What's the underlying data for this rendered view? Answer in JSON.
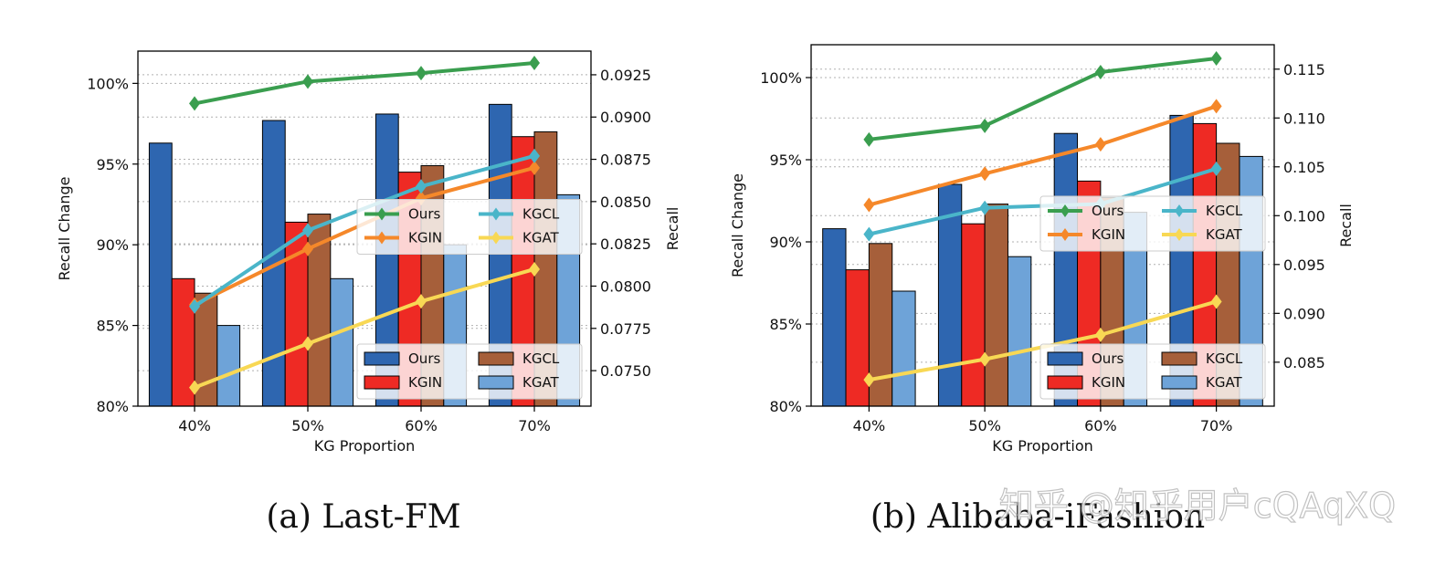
{
  "colors": {
    "Ours_bar": "#2e66b0",
    "KGIN_bar": "#ee2a24",
    "KGCL_bar": "#a65f3a",
    "KGAT_bar": "#6ea3d8",
    "Ours_line": "#3a9e4f",
    "KGIN_line": "#f5882a",
    "KGCL_line": "#4ab5c9",
    "KGAT_line": "#f8d854",
    "grid": "#b0b0b0"
  },
  "watermark": "知乎 @知乎用户cQAqXQ",
  "chart_data": [
    {
      "type": "bar",
      "caption": "(a)  Last-FM",
      "categories": [
        "40%",
        "50%",
        "60%",
        "70%"
      ],
      "xlabel": "KG Proportion",
      "ylabel": "Recall Change",
      "ylim": [
        80,
        102
      ],
      "y_ticks": [
        80,
        85,
        90,
        95,
        100
      ],
      "y_tick_labels": [
        "80%",
        "85%",
        "90%",
        "95%",
        "100%"
      ],
      "y2label": "Recall",
      "y2lim": [
        0.0729,
        0.0939
      ],
      "y2_ticks": [
        0.075,
        0.0775,
        0.08,
        0.0825,
        0.085,
        0.0875,
        0.09,
        0.0925
      ],
      "y2_tick_labels": [
        "0.0750",
        "0.0775",
        "0.0800",
        "0.0825",
        "0.0850",
        "0.0875",
        "0.0900",
        "0.0925"
      ],
      "grid": true,
      "bar_series": [
        {
          "name": "Ours",
          "values": [
            96.3,
            97.7,
            98.1,
            98.7
          ]
        },
        {
          "name": "KGIN",
          "values": [
            87.9,
            91.4,
            94.5,
            96.7
          ]
        },
        {
          "name": "KGCL",
          "values": [
            87.0,
            91.9,
            94.9,
            97.0
          ]
        },
        {
          "name": "KGAT",
          "values": [
            85.0,
            87.9,
            90.0,
            93.1
          ]
        }
      ],
      "line_series": [
        {
          "name": "Ours",
          "values": [
            0.0908,
            0.0921,
            0.0926,
            0.0932
          ]
        },
        {
          "name": "KGIN",
          "values": [
            0.0789,
            0.0822,
            0.0852,
            0.087
          ]
        },
        {
          "name": "KGCL",
          "values": [
            0.0788,
            0.0833,
            0.0859,
            0.0877
          ]
        },
        {
          "name": "KGAT",
          "values": [
            0.074,
            0.0766,
            0.0791,
            0.081
          ]
        }
      ],
      "line_legend": [
        "Ours",
        "KGCL",
        "KGIN",
        "KGAT"
      ],
      "line_legend_position": "center-right",
      "bar_legend": [
        "Ours",
        "KGCL",
        "KGIN",
        "KGAT"
      ],
      "bar_legend_position": "lower-right"
    },
    {
      "type": "bar",
      "caption": "(b)  Alibaba-iFashion",
      "categories": [
        "40%",
        "50%",
        "60%",
        "70%"
      ],
      "xlabel": "KG Proportion",
      "ylabel": "Recall Change",
      "ylim": [
        80,
        102
      ],
      "y_ticks": [
        80,
        85,
        90,
        95,
        100
      ],
      "y_tick_labels": [
        "80%",
        "85%",
        "90%",
        "95%",
        "100%"
      ],
      "y2label": "Recall",
      "y2lim": [
        0.0805,
        0.1175
      ],
      "y2_ticks": [
        0.085,
        0.09,
        0.095,
        0.1,
        0.105,
        0.11,
        0.115
      ],
      "y2_tick_labels": [
        "0.085",
        "0.090",
        "0.095",
        "0.100",
        "0.105",
        "0.110",
        "0.115"
      ],
      "grid": true,
      "bar_series": [
        {
          "name": "Ours",
          "values": [
            90.8,
            93.5,
            96.6,
            97.7
          ]
        },
        {
          "name": "KGIN",
          "values": [
            88.3,
            91.1,
            93.7,
            97.2
          ]
        },
        {
          "name": "KGCL",
          "values": [
            89.9,
            92.3,
            92.7,
            96.0
          ]
        },
        {
          "name": "KGAT",
          "values": [
            87.0,
            89.1,
            91.8,
            95.2
          ]
        }
      ],
      "line_series": [
        {
          "name": "Ours",
          "values": [
            0.1078,
            0.1092,
            0.1147,
            0.1161
          ]
        },
        {
          "name": "KGIN",
          "values": [
            0.1011,
            0.1043,
            0.1073,
            0.1112
          ]
        },
        {
          "name": "KGCL",
          "values": [
            0.0981,
            0.1008,
            0.1012,
            0.1048
          ]
        },
        {
          "name": "KGAT",
          "values": [
            0.0832,
            0.0853,
            0.0878,
            0.0912
          ]
        }
      ],
      "line_legend": [
        "Ours",
        "KGCL",
        "KGIN",
        "KGAT"
      ],
      "line_legend_position": "center-right",
      "bar_legend": [
        "Ours",
        "KGCL",
        "KGIN",
        "KGAT"
      ],
      "bar_legend_position": "lower-right"
    }
  ]
}
